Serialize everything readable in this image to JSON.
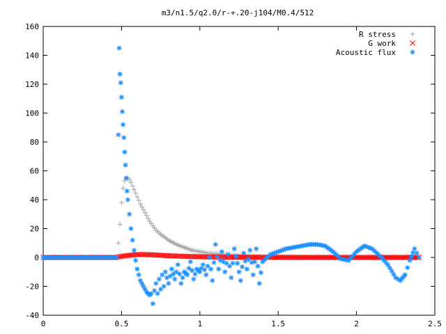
{
  "chart_data": {
    "type": "scatter",
    "title": "m3/n1.5/q2.0/r-+.20-j104/M0.4/512",
    "xlabel": "",
    "ylabel": "",
    "xlim": [
      0,
      2.5
    ],
    "ylim": [
      -40,
      160
    ],
    "grid": false,
    "legend_position": "top-right",
    "x_ticks": [
      0,
      0.5,
      1,
      1.5,
      2,
      2.5
    ],
    "x_tick_labels": [
      "0",
      "0.5",
      "1",
      "1.5",
      "2",
      "2.5"
    ],
    "y_ticks": [
      -40,
      -20,
      0,
      20,
      40,
      60,
      80,
      100,
      120,
      140,
      160
    ],
    "y_tick_labels": [
      "-40",
      "-20",
      "0",
      "20",
      "40",
      "60",
      "80",
      "100",
      "120",
      "140",
      "160"
    ],
    "series": [
      {
        "name": "R stress",
        "marker": "plus",
        "color": "#a0a0a0",
        "x": [
          0,
          0.1,
          0.2,
          0.3,
          0.4,
          0.47,
          0.48,
          0.49,
          0.5,
          0.51,
          0.52,
          0.53,
          0.54,
          0.55,
          0.56,
          0.58,
          0.6,
          0.62,
          0.64,
          0.66,
          0.68,
          0.7,
          0.72,
          0.75,
          0.8,
          0.85,
          0.9,
          0.95,
          1.0,
          1.05,
          1.1,
          1.15,
          1.2,
          1.3,
          1.4,
          1.5,
          1.6,
          1.7,
          1.8,
          1.9,
          2.0,
          2.1,
          2.2,
          2.3,
          2.4
        ],
        "y": [
          0,
          0,
          0,
          0,
          0,
          0,
          10,
          23,
          38,
          48,
          53,
          55,
          55,
          54,
          52,
          47,
          42,
          37,
          33,
          29,
          25,
          22,
          19,
          16,
          12,
          9,
          7,
          5,
          4,
          3,
          2.5,
          2,
          1.5,
          1,
          0.6,
          0.4,
          0.2,
          0.1,
          0.05,
          0,
          0,
          0,
          0,
          0,
          0
        ]
      },
      {
        "name": "G work",
        "marker": "cross",
        "color": "#ff0000",
        "x": [
          0,
          0.1,
          0.2,
          0.3,
          0.4,
          0.47,
          0.5,
          0.55,
          0.6,
          0.65,
          0.7,
          0.75,
          0.8,
          0.9,
          1.0,
          1.1,
          1.2,
          1.3,
          1.4,
          1.5,
          1.6,
          1.7,
          1.8,
          1.9,
          2.0,
          2.1,
          2.2,
          2.3,
          2.4
        ],
        "y": [
          0,
          0,
          0,
          0,
          0,
          0,
          0.8,
          1.5,
          2,
          2,
          1.8,
          1.5,
          1.2,
          0.8,
          0.5,
          0.3,
          0.2,
          0.1,
          0.05,
          0,
          0,
          0,
          0,
          0,
          0,
          0,
          0,
          0,
          0
        ]
      },
      {
        "name": "Acoustic flux",
        "marker": "star",
        "color": "#1e90ff",
        "x": [
          0,
          0.1,
          0.2,
          0.3,
          0.4,
          0.47,
          0.48,
          0.485,
          0.49,
          0.495,
          0.5,
          0.505,
          0.51,
          0.515,
          0.52,
          0.525,
          0.53,
          0.535,
          0.54,
          0.55,
          0.56,
          0.57,
          0.58,
          0.59,
          0.6,
          0.61,
          0.62,
          0.63,
          0.64,
          0.65,
          0.66,
          0.67,
          0.68,
          0.69,
          0.7,
          0.71,
          0.72,
          0.73,
          0.74,
          0.75,
          0.76,
          0.77,
          0.78,
          0.8,
          0.82,
          0.84,
          0.86,
          0.88,
          0.9,
          0.92,
          0.94,
          0.96,
          0.98,
          1.0,
          1.02,
          1.04,
          1.06,
          1.08,
          1.1,
          1.12,
          1.14,
          1.16,
          1.18,
          1.2,
          1.22,
          1.24,
          1.26,
          1.28,
          1.3,
          1.32,
          1.34,
          1.36,
          1.38,
          1.4,
          1.45,
          1.5,
          1.55,
          1.6,
          1.65,
          1.7,
          1.75,
          1.8,
          1.85,
          1.9,
          1.95,
          2.0,
          2.05,
          2.1,
          2.15,
          2.2,
          2.25,
          2.28,
          2.31,
          2.34,
          2.37,
          2.4
        ],
        "y": [
          0,
          0,
          0,
          0,
          0,
          0,
          85,
          145,
          127,
          121,
          111,
          101,
          92,
          83,
          73,
          64,
          55,
          46,
          40,
          30,
          20,
          12,
          5,
          -2,
          -8,
          -12,
          -16,
          -18,
          -20,
          -22,
          -24,
          -25,
          -26,
          -25,
          -32,
          -23,
          -18,
          -25,
          -15,
          -22,
          -12,
          -20,
          -10,
          -18,
          -8,
          -15,
          -5,
          -18,
          -10,
          -12,
          -3,
          -15,
          -8,
          -10,
          -5,
          -12,
          0,
          -16,
          9,
          -8,
          4,
          -10,
          2,
          -14,
          6,
          -4,
          -16,
          3,
          -8,
          5,
          -12,
          6,
          -18,
          -3,
          2,
          4,
          6,
          7,
          8,
          9,
          9,
          8,
          4,
          -1,
          -2,
          4,
          8,
          6,
          1,
          -5,
          -14,
          -16,
          -12,
          -2,
          6,
          0
        ]
      }
    ]
  }
}
